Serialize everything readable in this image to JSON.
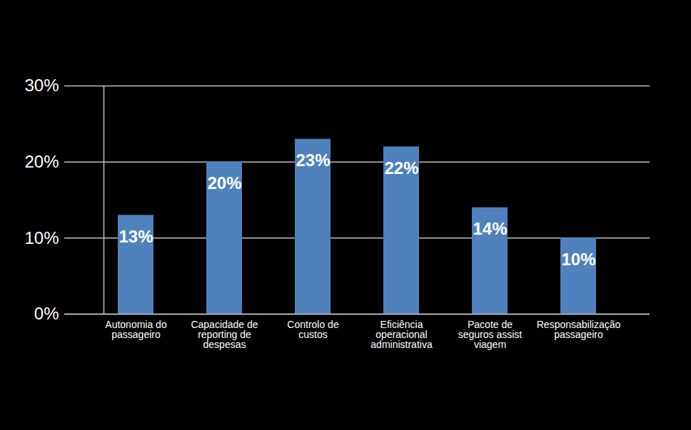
{
  "chart_data": {
    "type": "bar",
    "categories": [
      "Autonomia do passageiro",
      "Capacidade de reporting de despesas",
      "Controlo de custos",
      "Eficiência operacional administrativa",
      "Pacote de seguros assist viagem",
      "Responsabilização passageiro"
    ],
    "values": [
      13,
      20,
      23,
      22,
      14,
      10
    ],
    "value_labels": [
      "13%",
      "20%",
      "23%",
      "22%",
      "14%",
      "10%"
    ],
    "color": "#4f81bd",
    "ylim": [
      0,
      30
    ],
    "yticks": [
      {
        "value": 0,
        "label": "0%"
      },
      {
        "value": 10,
        "label": "10%"
      },
      {
        "value": 20,
        "label": "20%"
      },
      {
        "value": 30,
        "label": "30%"
      }
    ],
    "grid": true,
    "data_labels": true
  }
}
